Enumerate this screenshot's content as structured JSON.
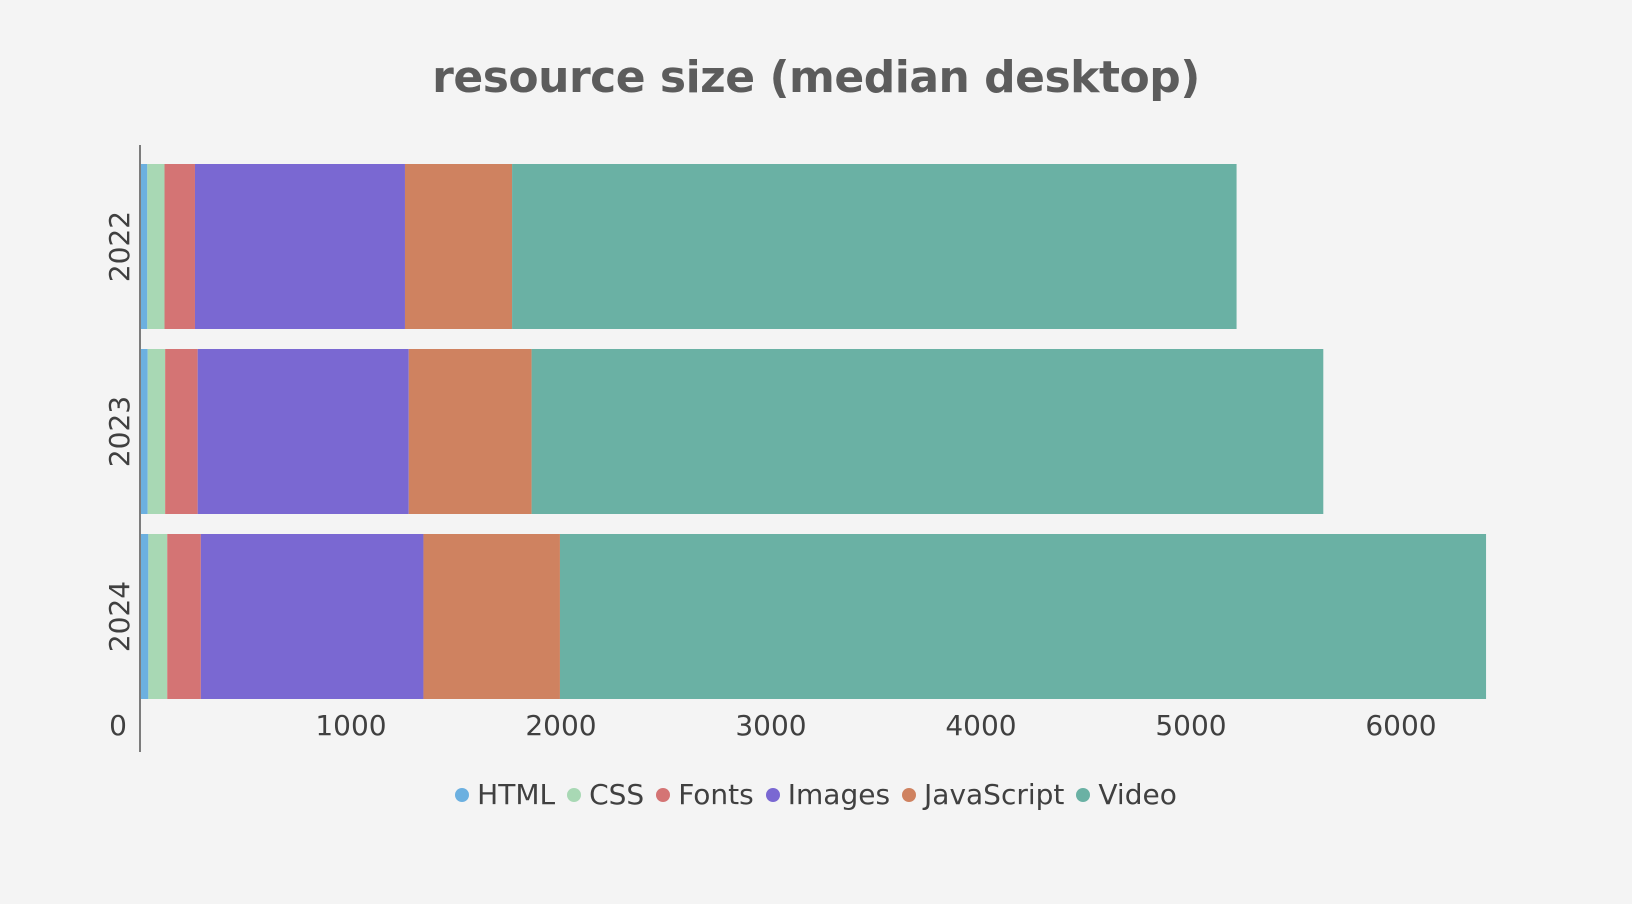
{
  "chart_data": {
    "type": "bar",
    "orientation": "horizontal",
    "stacked": true,
    "title": "resource size (median desktop)",
    "xlabel": "",
    "ylabel": "",
    "categories": [
      "2022",
      "2023",
      "2024"
    ],
    "xlim": [
      0,
      6600
    ],
    "xticks": [
      "0",
      "1000",
      "2000",
      "3000",
      "4000",
      "5000",
      "6000"
    ],
    "grid": false,
    "legend_position": "bottom",
    "series": [
      {
        "name": "HTML",
        "color": "#6cb0e0",
        "values": [
          30,
          32,
          35
        ]
      },
      {
        "name": "CSS",
        "color": "#a8d8b4",
        "values": [
          82,
          83,
          90
        ]
      },
      {
        "name": "Fonts",
        "color": "#d47474",
        "values": [
          145,
          155,
          160
        ]
      },
      {
        "name": "Images",
        "color": "#7a68d2",
        "values": [
          1000,
          1005,
          1060
        ]
      },
      {
        "name": "JavaScript",
        "color": "#cf8260",
        "values": [
          510,
          585,
          650
        ]
      },
      {
        "name": "Video",
        "color": "#6ab1a4",
        "values": [
          3450,
          3770,
          4410
        ]
      }
    ]
  }
}
